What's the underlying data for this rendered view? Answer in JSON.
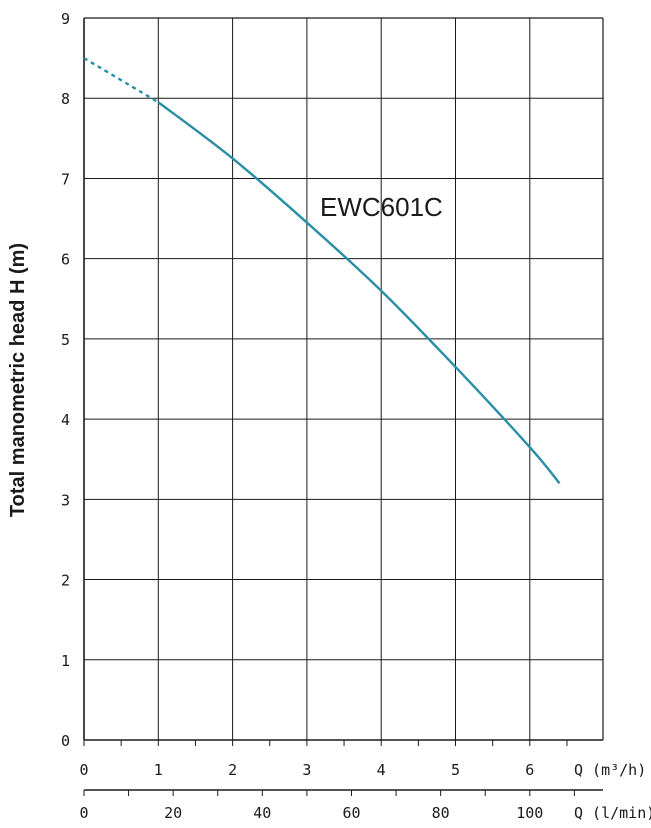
{
  "chart_data": {
    "type": "line",
    "title": "",
    "ylabel": "Total manometric head H (m)",
    "xlabel_primary": "Q (m³/h)",
    "xlabel_secondary": "Q (l/min)",
    "x_primary_ticks": [
      "0",
      "1",
      "2",
      "3",
      "4",
      "5",
      "6"
    ],
    "x_secondary_ticks": [
      "0",
      "20",
      "40",
      "60",
      "80",
      "100"
    ],
    "y_ticks": [
      "0",
      "1",
      "2",
      "3",
      "4",
      "5",
      "6",
      "7",
      "8",
      "9"
    ],
    "xlim": [
      0,
      7
    ],
    "ylim": [
      0,
      9
    ],
    "grid": true,
    "line_color": "#2a8fa6",
    "series": [
      {
        "name": "EWC601C",
        "x": [
          0,
          1,
          2,
          3,
          4,
          5,
          6,
          6.4
        ],
        "y": [
          8.5,
          7.95,
          7.25,
          6.45,
          5.6,
          4.65,
          3.65,
          3.2
        ],
        "dashed_until_x": 1
      }
    ]
  }
}
